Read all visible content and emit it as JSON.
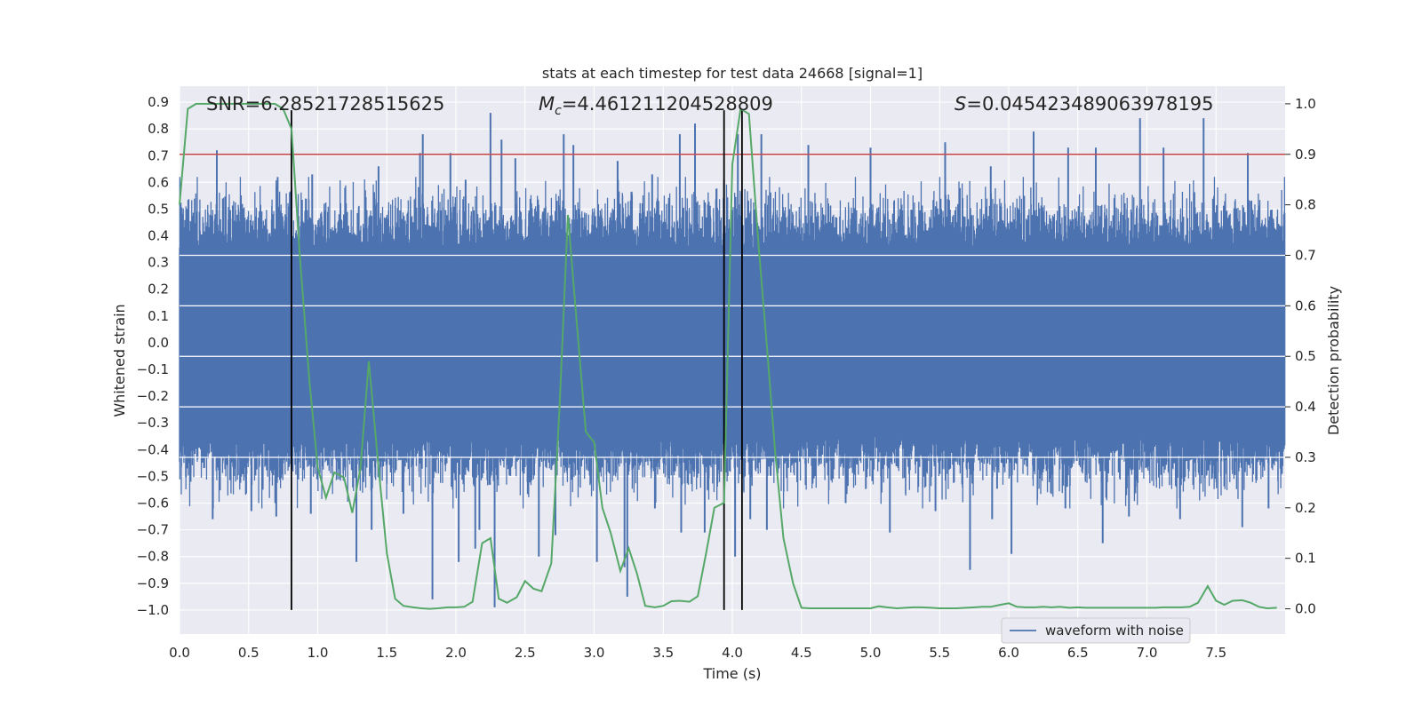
{
  "chart_data": {
    "type": "line",
    "title": "stats at each timestep for test data 24668 [signal=1]",
    "xlabel": "Time (s)",
    "ylabel": "Whitened strain",
    "ylabel_right": "Detection probability",
    "xlim": [
      0.0,
      8.0
    ],
    "ylim": [
      -1.09,
      0.96
    ],
    "ylim_right": [
      -0.05,
      1.035
    ],
    "x_ticks": [
      "0.0",
      "0.5",
      "1.0",
      "1.5",
      "2.0",
      "2.5",
      "3.0",
      "3.5",
      "4.0",
      "4.5",
      "5.0",
      "5.5",
      "6.0",
      "6.5",
      "7.0",
      "7.5"
    ],
    "y_ticks": [
      "0.9",
      "0.8",
      "0.7",
      "0.6",
      "0.5",
      "0.4",
      "0.3",
      "0.2",
      "0.1",
      "0.0",
      "−1.0"
    ],
    "y_ticks_full": [
      0.9,
      0.8,
      0.7,
      0.6,
      0.5,
      0.4,
      0.3,
      0.2,
      0.1,
      0.0,
      -0.1,
      -0.2,
      -0.3,
      -0.4,
      -0.5,
      -0.6,
      -0.7,
      -0.8,
      -0.9,
      -1.0
    ],
    "y_right_ticks": [
      "1.0",
      "0.9",
      "0.8",
      "0.7",
      "0.6",
      "0.5",
      "0.4",
      "0.3",
      "0.2",
      "0.1",
      "0.0"
    ],
    "grid": true,
    "legend_position": "lower-right",
    "annotations": {
      "snr": "SNR=6.28521728515625",
      "mc_symbol": "M",
      "mc_sub": "c",
      "mc_value": "=4.461211204528809",
      "s_symbol": "S",
      "s_value": "=0.045423489063978195"
    },
    "threshold": {
      "axis": "right",
      "y": 0.9,
      "color": "#c44e52"
    },
    "vertical_markers": {
      "x": [
        0.81,
        3.94,
        4.07
      ],
      "y_range": [
        -1.0,
        0.87
      ],
      "color": "#000000"
    },
    "series": [
      {
        "name": "waveform with noise",
        "axis": "left",
        "color": "#4c72b0",
        "sample_rate_hz": 2048,
        "envelope_typical": [
          -0.45,
          0.45
        ],
        "peaks_pos": [
          [
            0.27,
            0.72
          ],
          [
            0.71,
            0.62
          ],
          [
            0.96,
            0.63
          ],
          [
            1.44,
            0.66
          ],
          [
            1.74,
            0.71
          ],
          [
            1.76,
            0.78
          ],
          [
            1.96,
            0.71
          ],
          [
            2.07,
            0.61
          ],
          [
            2.25,
            0.86
          ],
          [
            2.33,
            0.76
          ],
          [
            2.43,
            0.69
          ],
          [
            2.78,
            0.78
          ],
          [
            2.85,
            0.74
          ],
          [
            3.17,
            0.68
          ],
          [
            3.42,
            0.63
          ],
          [
            3.62,
            0.78
          ],
          [
            3.73,
            0.82
          ],
          [
            3.94,
            0.61
          ],
          [
            4.04,
            0.78
          ],
          [
            4.21,
            0.78
          ],
          [
            4.55,
            0.74
          ],
          [
            5.0,
            0.73
          ],
          [
            5.54,
            0.75
          ],
          [
            5.87,
            0.66
          ],
          [
            6.18,
            0.79
          ],
          [
            6.43,
            0.73
          ],
          [
            6.63,
            0.73
          ],
          [
            6.95,
            0.84
          ],
          [
            7.12,
            0.73
          ],
          [
            7.41,
            0.84
          ],
          [
            7.73,
            0.71
          ]
        ],
        "peaks_neg": [
          [
            0.08,
            -0.52
          ],
          [
            0.24,
            -0.66
          ],
          [
            0.52,
            -0.63
          ],
          [
            0.7,
            -0.65
          ],
          [
            0.95,
            -0.64
          ],
          [
            1.28,
            -0.82
          ],
          [
            1.39,
            -0.7
          ],
          [
            1.62,
            -0.64
          ],
          [
            1.83,
            -0.96
          ],
          [
            2.02,
            -0.82
          ],
          [
            2.14,
            -0.77
          ],
          [
            2.17,
            -0.7
          ],
          [
            2.28,
            -0.99
          ],
          [
            2.6,
            -0.8
          ],
          [
            2.72,
            -0.72
          ],
          [
            3.02,
            -0.82
          ],
          [
            3.22,
            -0.84
          ],
          [
            3.24,
            -0.95
          ],
          [
            3.44,
            -0.62
          ],
          [
            3.63,
            -0.71
          ],
          [
            3.8,
            -0.71
          ],
          [
            4.02,
            -0.8
          ],
          [
            4.13,
            -0.66
          ],
          [
            4.25,
            -0.7
          ],
          [
            4.82,
            -0.6
          ],
          [
            5.14,
            -0.71
          ],
          [
            5.47,
            -0.63
          ],
          [
            5.72,
            -0.85
          ],
          [
            5.88,
            -0.66
          ],
          [
            6.02,
            -0.79
          ],
          [
            6.41,
            -0.62
          ],
          [
            6.68,
            -0.75
          ],
          [
            6.87,
            -0.65
          ],
          [
            7.24,
            -0.66
          ],
          [
            7.69,
            -0.69
          ],
          [
            7.88,
            -0.62
          ]
        ]
      },
      {
        "name": "detection probability",
        "axis": "right",
        "color": "#55a868",
        "x": [
          0.0,
          0.06,
          0.12,
          0.19,
          0.25,
          0.31,
          0.37,
          0.44,
          0.5,
          0.56,
          0.62,
          0.69,
          0.75,
          0.81,
          0.87,
          0.94,
          1.0,
          1.06,
          1.12,
          1.19,
          1.25,
          1.31,
          1.37,
          1.44,
          1.5,
          1.56,
          1.62,
          1.69,
          1.75,
          1.81,
          1.87,
          1.94,
          2.0,
          2.06,
          2.12,
          2.19,
          2.25,
          2.31,
          2.37,
          2.44,
          2.5,
          2.56,
          2.62,
          2.69,
          2.75,
          2.81,
          2.87,
          2.94,
          3.0,
          3.06,
          3.12,
          3.19,
          3.25,
          3.31,
          3.37,
          3.44,
          3.5,
          3.56,
          3.62,
          3.69,
          3.75,
          3.81,
          3.87,
          3.94,
          4.0,
          4.06,
          4.12,
          4.19,
          4.25,
          4.31,
          4.37,
          4.44,
          4.5,
          4.56,
          4.62,
          4.69,
          4.75,
          4.81,
          4.87,
          4.94,
          5.0,
          5.06,
          5.12,
          5.19,
          5.25,
          5.31,
          5.37,
          5.44,
          5.5,
          5.56,
          5.62,
          5.69,
          5.75,
          5.81,
          5.87,
          5.94,
          6.0,
          6.06,
          6.12,
          6.19,
          6.25,
          6.31,
          6.37,
          6.44,
          6.5,
          6.56,
          6.62,
          6.69,
          6.75,
          6.81,
          6.87,
          6.94,
          7.0,
          7.06,
          7.12,
          7.19,
          7.25,
          7.31,
          7.37,
          7.44,
          7.5,
          7.56,
          7.62,
          7.69,
          7.75,
          7.81,
          7.87,
          7.94
        ],
        "values": [
          0.8,
          0.99,
          1.0,
          1.0,
          1.0,
          1.0,
          1.0,
          1.0,
          1.0,
          1.0,
          1.0,
          1.0,
          0.99,
          0.95,
          0.7,
          0.45,
          0.28,
          0.22,
          0.27,
          0.26,
          0.19,
          0.28,
          0.49,
          0.28,
          0.11,
          0.02,
          0.006,
          0.003,
          0.001,
          0.0,
          0.001,
          0.003,
          0.003,
          0.004,
          0.014,
          0.13,
          0.14,
          0.02,
          0.012,
          0.023,
          0.055,
          0.04,
          0.035,
          0.09,
          0.4,
          0.78,
          0.58,
          0.35,
          0.33,
          0.2,
          0.15,
          0.075,
          0.12,
          0.07,
          0.006,
          0.003,
          0.006,
          0.015,
          0.016,
          0.014,
          0.025,
          0.11,
          0.2,
          0.21,
          0.88,
          0.99,
          0.98,
          0.72,
          0.52,
          0.31,
          0.14,
          0.05,
          0.002,
          0.001,
          0.001,
          0.001,
          0.001,
          0.001,
          0.001,
          0.001,
          0.001,
          0.005,
          0.003,
          0.001,
          0.002,
          0.003,
          0.003,
          0.002,
          0.001,
          0.001,
          0.001,
          0.002,
          0.003,
          0.004,
          0.004,
          0.008,
          0.011,
          0.004,
          0.003,
          0.003,
          0.004,
          0.003,
          0.004,
          0.002,
          0.003,
          0.002,
          0.002,
          0.002,
          0.002,
          0.002,
          0.002,
          0.002,
          0.002,
          0.002,
          0.003,
          0.003,
          0.003,
          0.004,
          0.012,
          0.045,
          0.016,
          0.008,
          0.016,
          0.017,
          0.012,
          0.004,
          0.001,
          0.002
        ]
      }
    ]
  }
}
